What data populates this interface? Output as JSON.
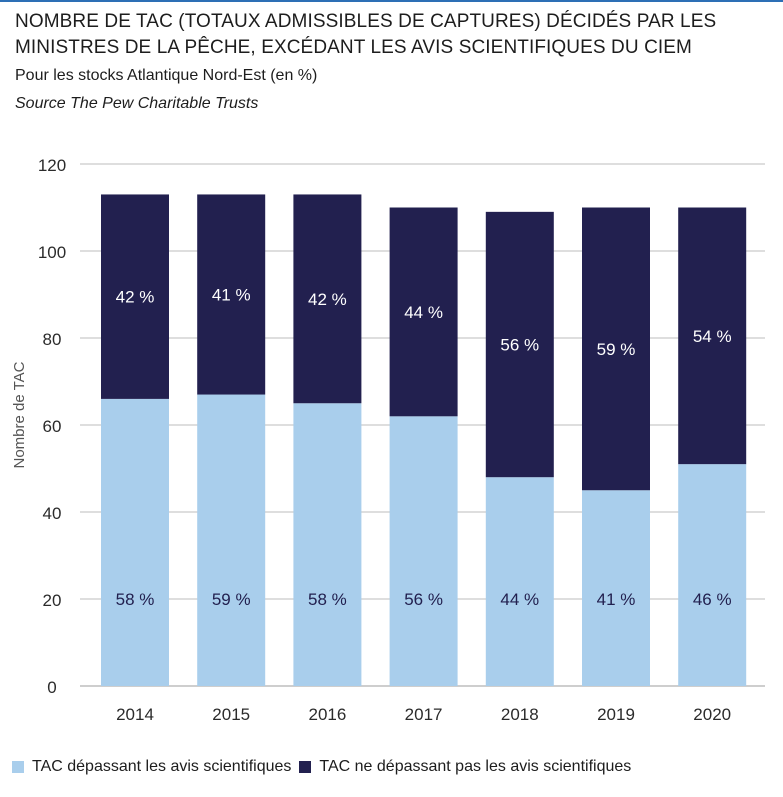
{
  "title": "NOMBRE DE TAC (TOTAUX ADMISSIBLES DE CAPTURES) DÉCIDÉS PAR LES MINISTRES DE LA PÊCHE, EXCÉDANT LES AVIS SCIENTIFIQUES DU CIEM",
  "subtitle": "Pour les stocks Atlantique Nord-Est (en %)",
  "source": "Source The Pew Charitable Trusts",
  "colors": {
    "light": "#a9ceec",
    "dark": "#22204f",
    "grid": "#bdbdbd",
    "title_rule": "#2d6fb5"
  },
  "chart_data": {
    "type": "bar",
    "stacked": true,
    "categories": [
      "2014",
      "2015",
      "2016",
      "2017",
      "2018",
      "2019",
      "2020"
    ],
    "series": [
      {
        "name": "TAC dépassant les avis scientifiques",
        "values": [
          66,
          67,
          65,
          62,
          48,
          45,
          51
        ],
        "labels": [
          "58 %",
          "59 %",
          "58 %",
          "56 %",
          "44 %",
          "41 %",
          "46 %"
        ],
        "color": "#a9ceec"
      },
      {
        "name": "TAC ne dépassant pas les avis scientifiques",
        "values": [
          47,
          46,
          48,
          48,
          61,
          65,
          59
        ],
        "labels": [
          "42 %",
          "41 %",
          "42 %",
          "44 %",
          "56 %",
          "59 %",
          "54 %"
        ],
        "color": "#22204f"
      }
    ],
    "ylabel": "Nombre de TAC",
    "xlabel": "",
    "ylim": [
      0,
      120
    ],
    "yticks": [
      0,
      20,
      40,
      60,
      80,
      100,
      120
    ],
    "grid": true,
    "legend_position": "bottom"
  }
}
